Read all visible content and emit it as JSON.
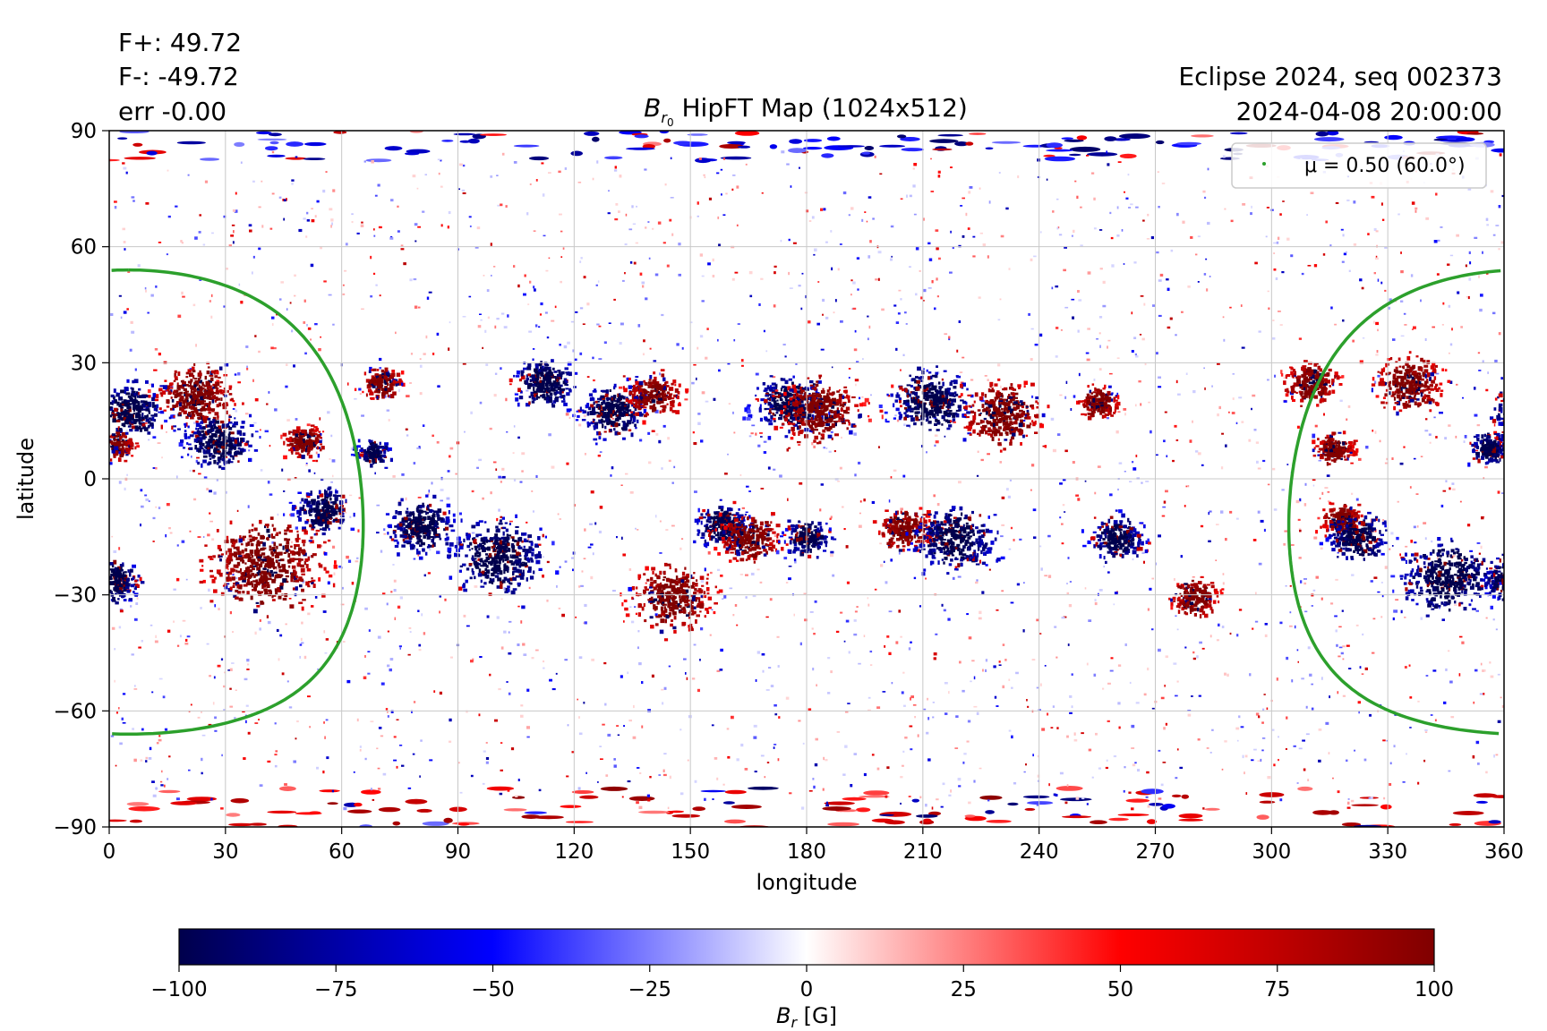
{
  "flux_info": {
    "f_plus": "F+: 49.72",
    "f_minus": "F-: -49.72",
    "err": "err -0.00"
  },
  "event_info": {
    "name": "Eclipse 2024, seq 002373",
    "datetime": "2024-04-08 20:00:00"
  },
  "colors": {
    "positive": "#cc0000",
    "negative": "#00008b",
    "mu_contour": "#2ca02c",
    "grid": "#c8c8c8"
  },
  "chart_data": {
    "type": "heatmap",
    "title_symbol": "B",
    "title_subscript": "r",
    "title_subsubscript": "0",
    "title_text": " HipFT Map (1024x512)",
    "xlabel": "longitude",
    "ylabel": "latitude",
    "xlim": [
      0,
      360
    ],
    "ylim": [
      -90,
      90
    ],
    "xticks": [
      0,
      30,
      60,
      90,
      120,
      150,
      180,
      210,
      240,
      270,
      300,
      330,
      360
    ],
    "yticks": [
      90,
      60,
      30,
      0,
      -30,
      -60,
      -90
    ],
    "ytick_labels": [
      "90",
      "60",
      "30",
      "0",
      "−30",
      "−60",
      "−90"
    ],
    "grid": true,
    "legend": {
      "position": "top-right",
      "label": "μ = 0.50 (60.0°)"
    },
    "mu_contour": {
      "center_lon": 5,
      "center_lat": -6,
      "radius_deg": 60,
      "label": "μ = 0.50 (60.0°)"
    },
    "active_regions": [
      {
        "lon": 5,
        "lat": 18,
        "polarity": -1,
        "size": 10
      },
      {
        "lon": 2,
        "lat": 9,
        "polarity": 1,
        "size": 5
      },
      {
        "lon": 22,
        "lat": 22,
        "polarity": 1,
        "size": 12
      },
      {
        "lon": 28,
        "lat": 10,
        "polarity": -1,
        "size": 10
      },
      {
        "lon": 40,
        "lat": -22,
        "polarity": 1,
        "size": 18
      },
      {
        "lon": 50,
        "lat": 10,
        "polarity": 1,
        "size": 6
      },
      {
        "lon": 55,
        "lat": -8,
        "polarity": -1,
        "size": 8
      },
      {
        "lon": 68,
        "lat": 7,
        "polarity": -1,
        "size": 5
      },
      {
        "lon": 70,
        "lat": 25,
        "polarity": 1,
        "size": 6
      },
      {
        "lon": 80,
        "lat": -12,
        "polarity": -1,
        "size": 10
      },
      {
        "lon": 100,
        "lat": -20,
        "polarity": -1,
        "size": 14
      },
      {
        "lon": 112,
        "lat": 25,
        "polarity": -1,
        "size": 9
      },
      {
        "lon": 130,
        "lat": 18,
        "polarity": -1,
        "size": 10
      },
      {
        "lon": 140,
        "lat": 22,
        "polarity": 1,
        "size": 8
      },
      {
        "lon": 145,
        "lat": -30,
        "polarity": 1,
        "size": 12
      },
      {
        "lon": 158,
        "lat": -12,
        "polarity": -1,
        "size": 8
      },
      {
        "lon": 165,
        "lat": -15,
        "polarity": 1,
        "size": 9
      },
      {
        "lon": 175,
        "lat": 20,
        "polarity": -1,
        "size": 10
      },
      {
        "lon": 183,
        "lat": 18,
        "polarity": 1,
        "size": 12
      },
      {
        "lon": 180,
        "lat": -15,
        "polarity": -1,
        "size": 7
      },
      {
        "lon": 205,
        "lat": -13,
        "polarity": 1,
        "size": 8
      },
      {
        "lon": 218,
        "lat": -15,
        "polarity": -1,
        "size": 12
      },
      {
        "lon": 212,
        "lat": 20,
        "polarity": -1,
        "size": 12
      },
      {
        "lon": 230,
        "lat": 17,
        "polarity": 1,
        "size": 12
      },
      {
        "lon": 255,
        "lat": 20,
        "polarity": 1,
        "size": 6
      },
      {
        "lon": 260,
        "lat": -15,
        "polarity": -1,
        "size": 8
      },
      {
        "lon": 280,
        "lat": -30,
        "polarity": 1,
        "size": 7
      },
      {
        "lon": 310,
        "lat": 25,
        "polarity": 1,
        "size": 8
      },
      {
        "lon": 316,
        "lat": 8,
        "polarity": 1,
        "size": 6
      },
      {
        "lon": 318,
        "lat": -10,
        "polarity": 1,
        "size": 6
      },
      {
        "lon": 322,
        "lat": -15,
        "polarity": -1,
        "size": 9
      },
      {
        "lon": 335,
        "lat": 25,
        "polarity": 1,
        "size": 10
      },
      {
        "lon": 345,
        "lat": -25,
        "polarity": -1,
        "size": 14
      },
      {
        "lon": 356,
        "lat": 8,
        "polarity": -1,
        "size": 6
      },
      {
        "lon": 1,
        "lat": -26,
        "polarity": -1,
        "size": 8
      }
    ],
    "colorbar": {
      "label_symbol": "B",
      "label_subscript": "r",
      "label_unit": " [G]",
      "range": [
        -100,
        100
      ],
      "ticks": [
        -100,
        -75,
        -50,
        -25,
        0,
        25,
        50,
        75,
        100
      ],
      "tick_labels": [
        "−100",
        "−75",
        "−50",
        "−25",
        "0",
        "25",
        "50",
        "75",
        "100"
      ],
      "colormap": "seismic"
    }
  }
}
